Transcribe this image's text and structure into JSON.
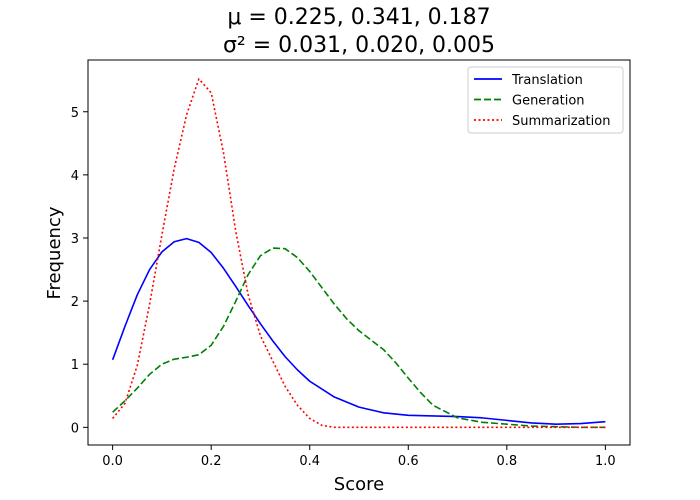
{
  "chart_data": {
    "type": "line",
    "title_lines": [
      "μ = 0.225, 0.341, 0.187",
      "σ² = 0.031, 0.020, 0.005"
    ],
    "xlabel": "Score",
    "ylabel": "Frequency",
    "xlim": [
      -0.05,
      1.05
    ],
    "ylim": [
      -0.28,
      5.82
    ],
    "xticks": [
      0.0,
      0.2,
      0.4,
      0.6,
      0.8,
      1.0
    ],
    "xtick_labels": [
      "0.0",
      "0.2",
      "0.4",
      "0.6",
      "0.8",
      "1.0"
    ],
    "yticks": [
      0,
      1,
      2,
      3,
      4,
      5
    ],
    "ytick_labels": [
      "0",
      "1",
      "2",
      "3",
      "4",
      "5"
    ],
    "grid": false,
    "legend_position": "top-right",
    "series": [
      {
        "name": "Translation",
        "color": "#0000ff",
        "style": "solid",
        "x": [
          0.0,
          0.025,
          0.05,
          0.075,
          0.1,
          0.125,
          0.15,
          0.175,
          0.2,
          0.225,
          0.25,
          0.275,
          0.3,
          0.325,
          0.35,
          0.375,
          0.4,
          0.45,
          0.5,
          0.55,
          0.6,
          0.65,
          0.7,
          0.75,
          0.8,
          0.85,
          0.9,
          0.95,
          1.0
        ],
        "y": [
          1.07,
          1.6,
          2.1,
          2.5,
          2.78,
          2.94,
          2.99,
          2.93,
          2.77,
          2.52,
          2.23,
          1.93,
          1.64,
          1.37,
          1.12,
          0.91,
          0.73,
          0.48,
          0.32,
          0.23,
          0.19,
          0.18,
          0.17,
          0.15,
          0.11,
          0.07,
          0.05,
          0.06,
          0.09
        ]
      },
      {
        "name": "Generation",
        "color": "#008000",
        "style": "dashed",
        "x": [
          0.0,
          0.025,
          0.05,
          0.075,
          0.1,
          0.125,
          0.15,
          0.175,
          0.2,
          0.225,
          0.25,
          0.275,
          0.3,
          0.325,
          0.35,
          0.375,
          0.4,
          0.425,
          0.45,
          0.475,
          0.5,
          0.525,
          0.55,
          0.575,
          0.6,
          0.625,
          0.65,
          0.7,
          0.75,
          0.8,
          0.85,
          0.9,
          0.95,
          1.0
        ],
        "y": [
          0.24,
          0.42,
          0.62,
          0.84,
          1.0,
          1.08,
          1.11,
          1.15,
          1.3,
          1.6,
          2.0,
          2.42,
          2.72,
          2.84,
          2.83,
          2.69,
          2.47,
          2.21,
          1.95,
          1.72,
          1.53,
          1.38,
          1.23,
          1.02,
          0.78,
          0.55,
          0.35,
          0.15,
          0.08,
          0.05,
          0.02,
          0.01,
          0.0,
          0.0
        ]
      },
      {
        "name": "Summarization",
        "color": "#ff0000",
        "style": "dotted",
        "x": [
          0.0,
          0.025,
          0.05,
          0.075,
          0.1,
          0.125,
          0.15,
          0.175,
          0.2,
          0.225,
          0.25,
          0.275,
          0.3,
          0.325,
          0.35,
          0.375,
          0.4,
          0.425,
          0.45,
          0.5,
          0.6,
          0.7,
          0.8,
          0.9,
          1.0
        ],
        "y": [
          0.14,
          0.38,
          0.98,
          1.95,
          3.05,
          4.1,
          4.95,
          5.52,
          5.3,
          4.35,
          3.1,
          2.1,
          1.45,
          1.05,
          0.65,
          0.35,
          0.14,
          0.03,
          0.0,
          0.0,
          0.0,
          0.0,
          0.0,
          0.0,
          0.0
        ]
      }
    ]
  }
}
